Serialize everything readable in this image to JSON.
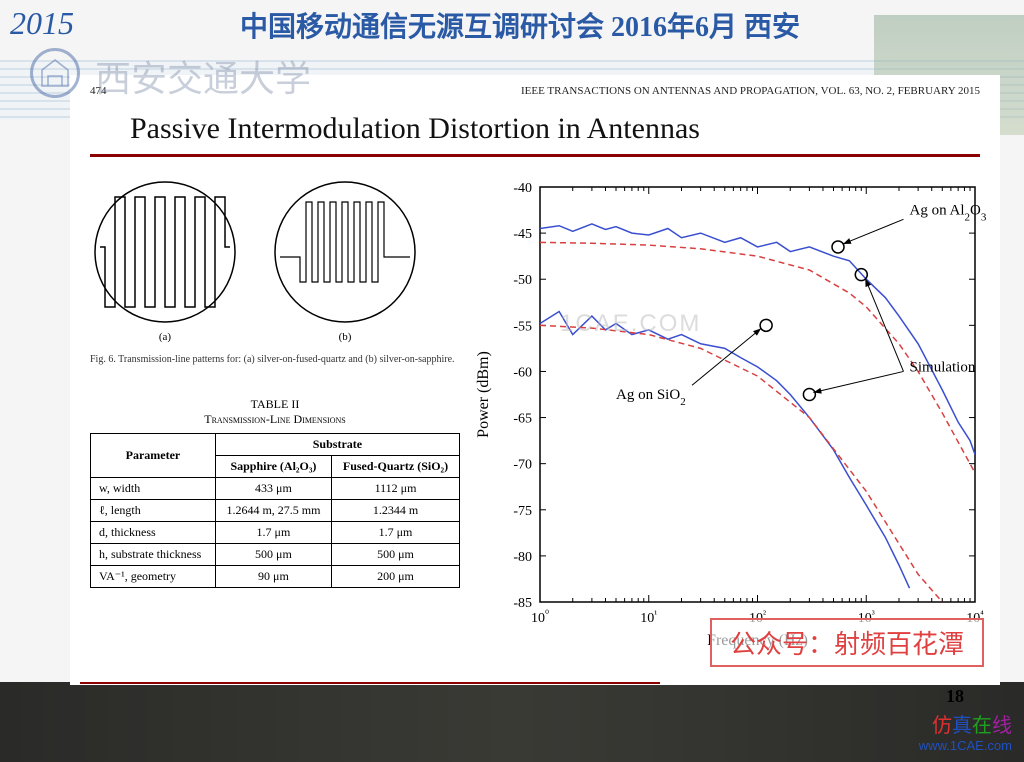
{
  "header": {
    "year": "2015",
    "conference_title": "中国移动通信无源互调研讨会 2016年6月 西安",
    "university_name": "西安交通大学"
  },
  "paper": {
    "page_number_source": "474",
    "journal": "IEEE TRANSACTIONS ON ANTENNAS AND PROPAGATION, VOL. 63, NO. 2, FEBRUARY 2015",
    "title": "Passive Intermodulation Distortion in Antennas"
  },
  "figure6": {
    "label_a": "(a)",
    "label_b": "(b)",
    "caption": "Fig. 6.  Transmission-line patterns for: (a) silver-on-fused-quartz and (b) silver-on-sapphire."
  },
  "table2": {
    "title_line1": "TABLE II",
    "title_line2": "Transmission-Line Dimensions",
    "col_param": "Parameter",
    "col_substrate": "Substrate",
    "col_sapphire": "Sapphire (Al₂O₃)",
    "col_quartz": "Fused-Quartz (SiO₂)",
    "rows": [
      {
        "param": "w, width",
        "a": "433 μm",
        "b": "1112 μm"
      },
      {
        "param": "ℓ, length",
        "a": "1.2644 m, 27.5 mm",
        "b": "1.2344 m"
      },
      {
        "param": "d, thickness",
        "a": "1.7 μm",
        "b": "1.7 μm"
      },
      {
        "param": "h, substrate thickness",
        "a": "500 μm",
        "b": "500 μm"
      },
      {
        "param": "VA⁻¹, geometry",
        "a": "90 μm",
        "b": "200 μm"
      }
    ]
  },
  "chart": {
    "type": "line",
    "xlabel": "Frequency (Hz)",
    "ylabel": "Power (dBm)",
    "xscale": "log",
    "xlim": [
      1,
      10000
    ],
    "ylim": [
      -85,
      -40
    ],
    "ytick_step": 5,
    "xticks": [
      1,
      10,
      100,
      1000,
      10000
    ],
    "xtick_labels": [
      "10⁰",
      "10¹",
      "10²",
      "10³",
      "10⁴"
    ],
    "background_color": "#ffffff",
    "axis_color": "#000000",
    "line_color_measured": "#3a4fd0",
    "line_color_sim": "#d84040",
    "line_width_measured": 1.5,
    "line_width_sim": 1.5,
    "line_dash_sim": "6,4",
    "marker_color": "#000000",
    "annotations": {
      "ag_al2o3": "Ag on Al₂O₃",
      "ag_sio2": "Ag on SiO₂",
      "sim": "Simulation"
    },
    "series": [
      {
        "name": "Ag on Al2O3 (measured)",
        "color": "#3a4fd0",
        "points": [
          [
            1,
            -44.5
          ],
          [
            1.5,
            -44.2
          ],
          [
            2,
            -44.8
          ],
          [
            3,
            -44.0
          ],
          [
            4,
            -44.6
          ],
          [
            5,
            -44.3
          ],
          [
            7,
            -45.0
          ],
          [
            10,
            -45.2
          ],
          [
            15,
            -44.5
          ],
          [
            20,
            -45.5
          ],
          [
            30,
            -45.0
          ],
          [
            50,
            -46.0
          ],
          [
            70,
            -45.5
          ],
          [
            100,
            -46.5
          ],
          [
            150,
            -46.0
          ],
          [
            200,
            -47.0
          ],
          [
            300,
            -46.5
          ],
          [
            500,
            -47.5
          ],
          [
            700,
            -48.0
          ],
          [
            1000,
            -50.0
          ],
          [
            1500,
            -52.0
          ],
          [
            2000,
            -54.0
          ],
          [
            3000,
            -57.0
          ],
          [
            5000,
            -62.0
          ],
          [
            7000,
            -65.5
          ],
          [
            9000,
            -67.5
          ],
          [
            10000,
            -69.0
          ]
        ]
      },
      {
        "name": "Ag on Al2O3 (sim)",
        "color": "#d84040",
        "dash": "6,4",
        "points": [
          [
            1,
            -46.0
          ],
          [
            3,
            -46.1
          ],
          [
            10,
            -46.3
          ],
          [
            30,
            -46.7
          ],
          [
            100,
            -47.5
          ],
          [
            300,
            -49.0
          ],
          [
            700,
            -51.5
          ],
          [
            1000,
            -53.0
          ],
          [
            2000,
            -57.0
          ],
          [
            3000,
            -60.0
          ],
          [
            5000,
            -64.5
          ],
          [
            10000,
            -71.0
          ]
        ]
      },
      {
        "name": "Ag on SiO2 (measured)",
        "color": "#3a4fd0",
        "points": [
          [
            1,
            -54.8
          ],
          [
            1.5,
            -53.5
          ],
          [
            2,
            -56.0
          ],
          [
            3,
            -54.0
          ],
          [
            4,
            -55.5
          ],
          [
            5,
            -54.8
          ],
          [
            7,
            -56.0
          ],
          [
            10,
            -55.5
          ],
          [
            15,
            -56.5
          ],
          [
            20,
            -56.0
          ],
          [
            30,
            -57.0
          ],
          [
            50,
            -57.5
          ],
          [
            70,
            -58.5
          ],
          [
            100,
            -59.5
          ],
          [
            150,
            -61.0
          ],
          [
            200,
            -62.5
          ],
          [
            300,
            -65.0
          ],
          [
            500,
            -68.5
          ],
          [
            700,
            -71.5
          ],
          [
            1000,
            -74.5
          ],
          [
            1500,
            -78.0
          ],
          [
            2000,
            -81.0
          ],
          [
            2500,
            -83.5
          ]
        ]
      },
      {
        "name": "Ag on SiO2 (sim)",
        "color": "#d84040",
        "dash": "6,4",
        "points": [
          [
            1,
            -55.0
          ],
          [
            3,
            -55.3
          ],
          [
            10,
            -56.0
          ],
          [
            30,
            -57.5
          ],
          [
            100,
            -60.5
          ],
          [
            300,
            -65.0
          ],
          [
            1000,
            -73.0
          ],
          [
            3000,
            -82.0
          ],
          [
            5000,
            -85.0
          ]
        ]
      }
    ],
    "marker_points": {
      "ag_al2o3": [
        550,
        -46.5
      ],
      "sim_upper": [
        900,
        -49.5
      ],
      "ag_sio2": [
        120,
        -55.0
      ],
      "sim_lower": [
        300,
        -62.5
      ]
    }
  },
  "watermark_center": "1CAE.COM",
  "watermark_box": "公众号：射频百花潭",
  "slide_page": "18",
  "brand": {
    "cn": "仿真在线",
    "url": "www.1CAE.com"
  }
}
